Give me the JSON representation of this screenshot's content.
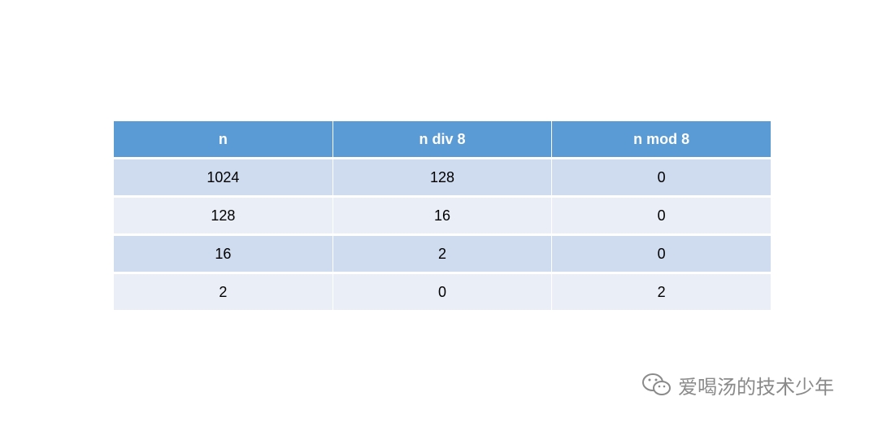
{
  "table": {
    "header": [
      "n",
      "n div 8",
      "n mod 8"
    ],
    "rows": [
      [
        "1024",
        "128",
        "0"
      ],
      [
        "128",
        "16",
        "0"
      ],
      [
        "16",
        "2",
        "0"
      ],
      [
        "2",
        "0",
        "2"
      ]
    ]
  },
  "watermark": "爱喝汤的技术少年"
}
